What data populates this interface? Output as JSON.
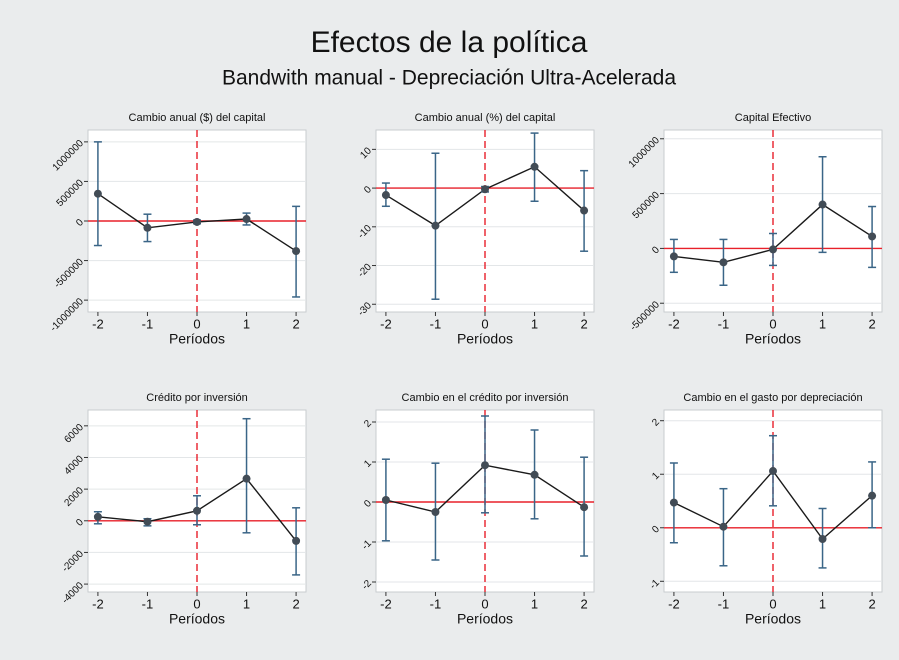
{
  "title": "Efectos de la política",
  "subtitle": "Bandwith manual - Depreciación Ultra-Acelerada",
  "chart_data": [
    {
      "type": "errorbar",
      "title": "Cambio anual ($) del capital",
      "xlabel": "Períodos",
      "x": [
        -2,
        -1,
        0,
        1,
        2
      ],
      "values": [
        345000,
        -86000,
        -12000,
        25000,
        -380000
      ],
      "lower": [
        -310000,
        -260000,
        -35000,
        -50000,
        -960000
      ],
      "upper": [
        1000000,
        86000,
        12000,
        100000,
        185000
      ],
      "xlim": [
        -2.2,
        2.2
      ],
      "xticks": [
        -2,
        -1,
        0,
        1,
        2
      ],
      "ylim": [
        -1150000,
        1150000
      ],
      "yticks": [
        -1000000,
        -500000,
        0,
        500000,
        1000000
      ],
      "yline": 0,
      "xline": 0,
      "grid": true,
      "color": "#1a1a1a",
      "marker_color": "#424c56",
      "ci_color": "#3a6587",
      "refline_color": "#e8202a"
    },
    {
      "type": "errorbar",
      "title": "Cambio anual (%) del capital",
      "xlabel": "Períodos",
      "x": [
        -2,
        -1,
        0,
        1,
        2
      ],
      "values": [
        -1.8,
        -9.7,
        -0.3,
        5.5,
        -5.8
      ],
      "lower": [
        -4.7,
        -28.7,
        -1.0,
        -3.4,
        -16.3
      ],
      "upper": [
        1.3,
        9,
        0.4,
        14.2,
        4.5
      ],
      "xlim": [
        -2.2,
        2.2
      ],
      "xticks": [
        -2,
        -1,
        0,
        1,
        2
      ],
      "ylim": [
        -32,
        15
      ],
      "yticks": [
        -30,
        -20,
        -10,
        0,
        10
      ],
      "yline": 0,
      "xline": 0,
      "grid": true,
      "color": "#1a1a1a",
      "marker_color": "#424c56",
      "ci_color": "#3a6587",
      "refline_color": "#e8202a"
    },
    {
      "type": "errorbar",
      "title": "Capital Efectivo",
      "xlabel": "Períodos",
      "x": [
        -2,
        -1,
        0,
        1,
        2
      ],
      "values": [
        -73000,
        -127000,
        -9000,
        400000,
        109000
      ],
      "lower": [
        -218000,
        -336000,
        -155000,
        -36000,
        -173000
      ],
      "upper": [
        82000,
        82000,
        136000,
        836000,
        382000
      ],
      "xlim": [
        -2.2,
        2.2
      ],
      "xticks": [
        -2,
        -1,
        0,
        1,
        2
      ],
      "ylim": [
        -580000,
        1080000
      ],
      "yticks": [
        -500000,
        0,
        500000,
        1000000
      ],
      "yline": 0,
      "xline": 0,
      "grid": true,
      "color": "#1a1a1a",
      "marker_color": "#424c56",
      "ci_color": "#3a6587",
      "refline_color": "#e8202a"
    },
    {
      "type": "errorbar",
      "title": "Crédito por inversión",
      "xlabel": "Períodos",
      "x": [
        -2,
        -1,
        0,
        1,
        2
      ],
      "values": [
        250,
        -60,
        630,
        2660,
        -1270
      ],
      "lower": [
        -190,
        -320,
        -250,
        -760,
        -3420
      ],
      "upper": [
        570,
        130,
        1580,
        6450,
        820
      ],
      "xlim": [
        -2.2,
        2.2
      ],
      "xticks": [
        -2,
        -1,
        0,
        1,
        2
      ],
      "ylim": [
        -4500,
        7000
      ],
      "yticks": [
        -4000,
        -2000,
        0,
        2000,
        4000,
        6000
      ],
      "yline": 0,
      "xline": 0,
      "grid": true,
      "color": "#1a1a1a",
      "marker_color": "#424c56",
      "ci_color": "#3a6587",
      "refline_color": "#e8202a"
    },
    {
      "type": "errorbar",
      "title": "Cambio en el crédito por inversión",
      "xlabel": "Períodos",
      "x": [
        -2,
        -1,
        0,
        1,
        2
      ],
      "values": [
        0.05,
        -0.25,
        0.92,
        0.68,
        -0.13
      ],
      "lower": [
        -0.97,
        -1.45,
        -0.27,
        -0.42,
        -1.35
      ],
      "upper": [
        1.07,
        0.97,
        2.15,
        1.8,
        1.12
      ],
      "xlim": [
        -2.2,
        2.2
      ],
      "xticks": [
        -2,
        -1,
        0,
        1,
        2
      ],
      "ylim": [
        -2.25,
        2.3
      ],
      "yticks": [
        -2,
        -1,
        0,
        1,
        2
      ],
      "yline": 0,
      "xline": 0,
      "grid": true,
      "color": "#1a1a1a",
      "marker_color": "#424c56",
      "ci_color": "#3a6587",
      "refline_color": "#e8202a"
    },
    {
      "type": "errorbar",
      "title": "Cambio en el gasto por depreciación",
      "xlabel": "Períodos",
      "x": [
        -2,
        -1,
        0,
        1,
        2
      ],
      "values": [
        0.47,
        0.02,
        1.06,
        -0.21,
        0.6
      ],
      "lower": [
        -0.28,
        -0.71,
        0.41,
        -0.75,
        0
      ],
      "upper": [
        1.21,
        0.73,
        1.72,
        0.36,
        1.23
      ],
      "xlim": [
        -2.2,
        2.2
      ],
      "xticks": [
        -2,
        -1,
        0,
        1,
        2
      ],
      "ylim": [
        -1.2,
        2.2
      ],
      "yticks": [
        -1,
        0,
        1,
        2
      ],
      "yline": 0,
      "xline": 0,
      "grid": true,
      "color": "#1a1a1a",
      "marker_color": "#424c56",
      "ci_color": "#3a6587",
      "refline_color": "#e8202a"
    }
  ]
}
